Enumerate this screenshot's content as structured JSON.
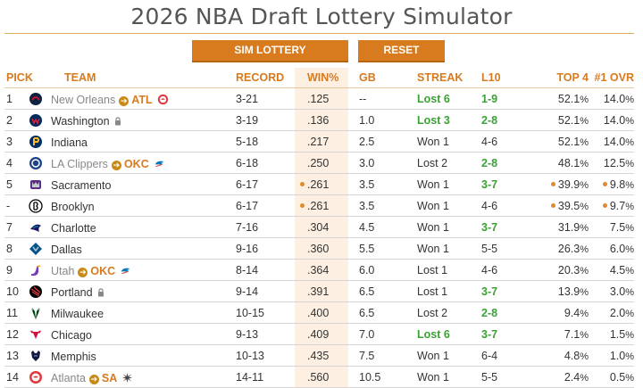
{
  "title": "2026 NBA Draft Lottery Simulator",
  "buttons": {
    "sim": "SIM LOTTERY",
    "reset": "RESET"
  },
  "headers": {
    "pick": "PICK",
    "team": "TEAM",
    "record": "RECORD",
    "win": "WIN%",
    "gb": "GB",
    "streak": "STREAK",
    "l10": "L10",
    "top4": "TOP 4",
    "ovr": "#1 OVR"
  },
  "colors": {
    "accent": "#d87a1e",
    "green": "#3aa135",
    "win_bg": "#fdf0e2"
  },
  "rows": [
    {
      "pick": "1",
      "team": "New Orleans",
      "traded": true,
      "to": "ATL",
      "to_icon": "hawks-logo",
      "logo": "pelicans-logo",
      "lock": false,
      "record": "3-21",
      "win": ".125",
      "gb": "--",
      "streak": "Lost 6",
      "streak_green": true,
      "l10": "1-9",
      "l10_green": true,
      "top4": "52.1",
      "ovr": "14.0",
      "dot": false,
      "top4dot": false,
      "ovrdot": false
    },
    {
      "pick": "2",
      "team": "Washington",
      "traded": false,
      "logo": "wizards-logo",
      "lock": true,
      "record": "3-19",
      "win": ".136",
      "gb": "1.0",
      "streak": "Lost 3",
      "streak_green": true,
      "l10": "2-8",
      "l10_green": true,
      "top4": "52.1",
      "ovr": "14.0",
      "dot": false,
      "top4dot": false,
      "ovrdot": false
    },
    {
      "pick": "3",
      "team": "Indiana",
      "traded": false,
      "logo": "pacers-logo",
      "lock": false,
      "record": "5-18",
      "win": ".217",
      "gb": "2.5",
      "streak": "Won 1",
      "streak_green": false,
      "l10": "4-6",
      "l10_green": false,
      "top4": "52.1",
      "ovr": "14.0",
      "dot": false,
      "top4dot": false,
      "ovrdot": false
    },
    {
      "pick": "4",
      "team": "LA Clippers",
      "traded": true,
      "to": "OKC",
      "to_icon": "thunder-logo",
      "logo": "clippers-logo",
      "lock": false,
      "record": "6-18",
      "win": ".250",
      "gb": "3.0",
      "streak": "Lost 2",
      "streak_green": false,
      "l10": "2-8",
      "l10_green": true,
      "top4": "48.1",
      "ovr": "12.5",
      "dot": false,
      "top4dot": false,
      "ovrdot": false
    },
    {
      "pick": "5",
      "team": "Sacramento",
      "traded": false,
      "logo": "kings-logo",
      "lock": false,
      "record": "6-17",
      "win": ".261",
      "gb": "3.5",
      "streak": "Won 1",
      "streak_green": false,
      "l10": "3-7",
      "l10_green": true,
      "top4": "39.9",
      "ovr": "9.8",
      "dot": true,
      "top4dot": true,
      "ovrdot": true
    },
    {
      "pick": "-",
      "team": "Brooklyn",
      "traded": false,
      "logo": "nets-logo",
      "lock": false,
      "record": "6-17",
      "win": ".261",
      "gb": "3.5",
      "streak": "Won 1",
      "streak_green": false,
      "l10": "4-6",
      "l10_green": false,
      "top4": "39.5",
      "ovr": "9.7",
      "dot": true,
      "top4dot": true,
      "ovrdot": true
    },
    {
      "pick": "7",
      "team": "Charlotte",
      "traded": false,
      "logo": "hornets-logo",
      "lock": false,
      "record": "7-16",
      "win": ".304",
      "gb": "4.5",
      "streak": "Won 1",
      "streak_green": false,
      "l10": "3-7",
      "l10_green": true,
      "top4": "31.9",
      "ovr": "7.5",
      "dot": false,
      "top4dot": false,
      "ovrdot": false
    },
    {
      "pick": "8",
      "team": "Dallas",
      "traded": false,
      "logo": "mavericks-logo",
      "lock": false,
      "record": "9-16",
      "win": ".360",
      "gb": "5.5",
      "streak": "Won 1",
      "streak_green": false,
      "l10": "5-5",
      "l10_green": false,
      "top4": "26.3",
      "ovr": "6.0",
      "dot": false,
      "top4dot": false,
      "ovrdot": false
    },
    {
      "pick": "9",
      "team": "Utah",
      "traded": true,
      "to": "OKC",
      "to_icon": "thunder-logo",
      "logo": "jazz-logo",
      "lock": false,
      "record": "8-14",
      "win": ".364",
      "gb": "6.0",
      "streak": "Lost 1",
      "streak_green": false,
      "l10": "4-6",
      "l10_green": false,
      "top4": "20.3",
      "ovr": "4.5",
      "dot": false,
      "top4dot": false,
      "ovrdot": false
    },
    {
      "pick": "10",
      "team": "Portland",
      "traded": false,
      "logo": "blazers-logo",
      "lock": true,
      "record": "9-14",
      "win": ".391",
      "gb": "6.5",
      "streak": "Lost 1",
      "streak_green": false,
      "l10": "3-7",
      "l10_green": true,
      "top4": "13.9",
      "ovr": "3.0",
      "dot": false,
      "top4dot": false,
      "ovrdot": false
    },
    {
      "pick": "11",
      "team": "Milwaukee",
      "traded": false,
      "logo": "bucks-logo",
      "lock": false,
      "record": "10-15",
      "win": ".400",
      "gb": "6.5",
      "streak": "Lost 2",
      "streak_green": false,
      "l10": "2-8",
      "l10_green": true,
      "top4": "9.4",
      "ovr": "2.0",
      "dot": false,
      "top4dot": false,
      "ovrdot": false
    },
    {
      "pick": "12",
      "team": "Chicago",
      "traded": false,
      "logo": "bulls-logo",
      "lock": false,
      "record": "9-13",
      "win": ".409",
      "gb": "7.0",
      "streak": "Lost 6",
      "streak_green": true,
      "l10": "3-7",
      "l10_green": true,
      "top4": "7.1",
      "ovr": "1.5",
      "dot": false,
      "top4dot": false,
      "ovrdot": false
    },
    {
      "pick": "13",
      "team": "Memphis",
      "traded": false,
      "logo": "grizzlies-logo",
      "lock": false,
      "record": "10-13",
      "win": ".435",
      "gb": "7.5",
      "streak": "Won 1",
      "streak_green": false,
      "l10": "6-4",
      "l10_green": false,
      "top4": "4.8",
      "ovr": "1.0",
      "dot": false,
      "top4dot": false,
      "ovrdot": false
    },
    {
      "pick": "14",
      "team": "Atlanta",
      "traded": true,
      "to": "SA",
      "to_icon": "spurs-logo",
      "logo": "hawks-logo",
      "lock": false,
      "record": "14-11",
      "win": ".560",
      "gb": "10.5",
      "streak": "Won 1",
      "streak_green": false,
      "l10": "5-5",
      "l10_green": false,
      "top4": "2.4",
      "ovr": "0.5",
      "dot": false,
      "top4dot": false,
      "ovrdot": false
    }
  ]
}
